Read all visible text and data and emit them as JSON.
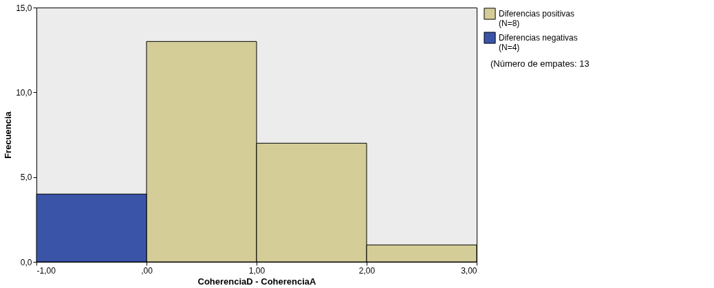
{
  "chart_data": {
    "type": "histogram",
    "xlabel": "CoherenciaD - CoherenciaA",
    "ylabel": "Frecuencia",
    "bins": [
      -1,
      0,
      1,
      2,
      3
    ],
    "series": [
      {
        "name": "Diferencias positivas (N=8)",
        "color": "#d5cd98",
        "values": [
          null,
          13,
          7,
          1
        ]
      },
      {
        "name": "Diferencias negativas (N=4)",
        "color": "#3a55a8",
        "values": [
          4,
          null,
          null,
          null
        ]
      }
    ],
    "xlim": [
      -1,
      3
    ],
    "xticks": [
      {
        "value": -1,
        "label": "-1,00"
      },
      {
        "value": 0,
        "label": ",00"
      },
      {
        "value": 1,
        "label": "1,00"
      },
      {
        "value": 2,
        "label": "2,00"
      },
      {
        "value": 3,
        "label": "3,00"
      }
    ],
    "ylim": [
      0,
      15
    ],
    "yticks": [
      {
        "value": 0,
        "label": "0,0"
      },
      {
        "value": 5,
        "label": "5,0"
      },
      {
        "value": 10,
        "label": "10,0"
      },
      {
        "value": 15,
        "label": "15,0"
      }
    ],
    "grid": false,
    "legend": "top right",
    "annotations": [
      "(Número de empates: 13"
    ]
  }
}
